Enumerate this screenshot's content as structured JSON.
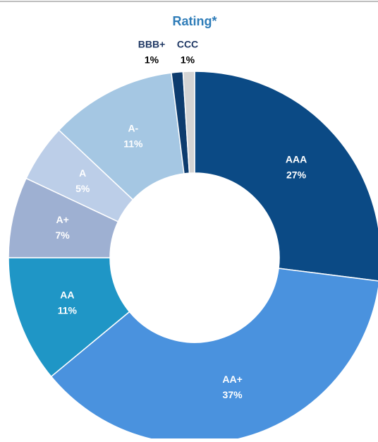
{
  "chart_data": {
    "type": "donut",
    "title": "Rating*",
    "categories": [
      "AAA",
      "AA+",
      "AA",
      "A+",
      "A",
      "A-",
      "BBB+",
      "CCC"
    ],
    "values": [
      27,
      37,
      11,
      7,
      5,
      11,
      1,
      1
    ],
    "value_labels": [
      "27%",
      "37%",
      "11%",
      "7%",
      "5%",
      "11%",
      "1%",
      "1%"
    ],
    "colors": [
      "#0b4a85",
      "#4a92de",
      "#1f96c6",
      "#9eb0d2",
      "#bccee8",
      "#a5c7e3",
      "#0d3c6e",
      "#d4d4d4"
    ]
  }
}
